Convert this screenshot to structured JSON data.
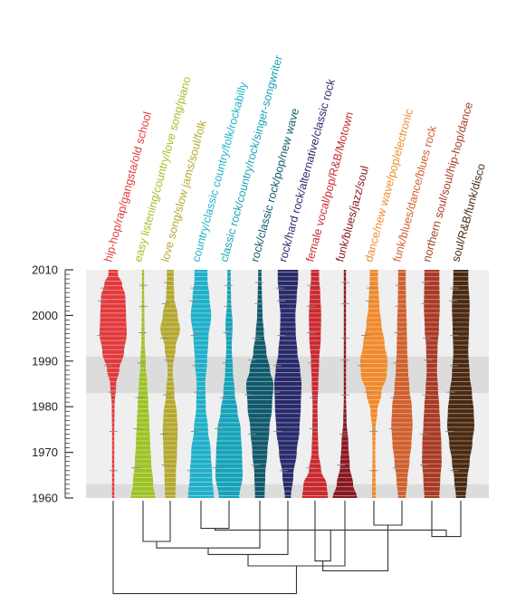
{
  "chart_data": {
    "type": "violin",
    "y_axis": {
      "ylim": [
        1960,
        2010
      ],
      "ticks": [
        "1960",
        "1970",
        "1980",
        "1990",
        "2000",
        "2010"
      ],
      "shaded_bands": [
        [
          1960,
          1963
        ],
        [
          1983,
          1991
        ]
      ]
    },
    "series": [
      {
        "name": "hip-hop/rap/gangsta/old school",
        "color": "#e23a3c",
        "density": [
          [
            1960,
            0.05
          ],
          [
            1970,
            0.06
          ],
          [
            1980,
            0.1
          ],
          [
            1985,
            0.22
          ],
          [
            1988,
            0.45
          ],
          [
            1992,
            0.8
          ],
          [
            1996,
            1.0
          ],
          [
            2000,
            0.95
          ],
          [
            2004,
            0.9
          ],
          [
            2007,
            0.65
          ],
          [
            2009,
            0.35
          ]
        ]
      },
      {
        "name": "easy listening/country/love song/piano",
        "color": "#9ec225",
        "density": [
          [
            1960,
            0.9
          ],
          [
            1963,
            0.75
          ],
          [
            1968,
            0.6
          ],
          [
            1972,
            0.52
          ],
          [
            1977,
            0.45
          ],
          [
            1981,
            0.38
          ],
          [
            1985,
            0.3
          ],
          [
            1989,
            0.2
          ],
          [
            1995,
            0.12
          ],
          [
            2002,
            0.09
          ],
          [
            2008,
            0.06
          ]
        ]
      },
      {
        "name": "love song/slow jams/soul/folk",
        "color": "#b5a830",
        "density": [
          [
            1960,
            0.38
          ],
          [
            1965,
            0.42
          ],
          [
            1970,
            0.5
          ],
          [
            1975,
            0.55
          ],
          [
            1978,
            0.5
          ],
          [
            1983,
            0.3
          ],
          [
            1988,
            0.18
          ],
          [
            1993,
            0.4
          ],
          [
            1997,
            0.72
          ],
          [
            2000,
            0.55
          ],
          [
            2004,
            0.3
          ],
          [
            2008,
            0.25
          ]
        ]
      },
      {
        "name": "country/classic country/folk/rockabilly",
        "color": "#1fb0c9",
        "density": [
          [
            1960,
            0.95
          ],
          [
            1965,
            0.82
          ],
          [
            1970,
            0.72
          ],
          [
            1975,
            0.52
          ],
          [
            1980,
            0.35
          ],
          [
            1985,
            0.32
          ],
          [
            1990,
            0.45
          ],
          [
            1995,
            0.55
          ],
          [
            2000,
            0.75
          ],
          [
            2004,
            0.62
          ],
          [
            2008,
            0.48
          ]
        ]
      },
      {
        "name": "classic rock/country/rock/singer-songwriter",
        "color": "#16a3b8",
        "density": [
          [
            1960,
            0.75
          ],
          [
            1965,
            1.0
          ],
          [
            1970,
            0.95
          ],
          [
            1975,
            0.85
          ],
          [
            1979,
            0.62
          ],
          [
            1983,
            0.42
          ],
          [
            1988,
            0.28
          ],
          [
            1993,
            0.2
          ],
          [
            1998,
            0.26
          ],
          [
            2003,
            0.15
          ],
          [
            2008,
            0.12
          ]
        ]
      },
      {
        "name": "rock/classic rock/pop/new wave",
        "color": "#10596b",
        "density": [
          [
            1960,
            0.35
          ],
          [
            1965,
            0.4
          ],
          [
            1970,
            0.55
          ],
          [
            1975,
            0.7
          ],
          [
            1980,
            0.9
          ],
          [
            1985,
            1.0
          ],
          [
            1988,
            0.75
          ],
          [
            1992,
            0.48
          ],
          [
            1996,
            0.3
          ],
          [
            2000,
            0.2
          ],
          [
            2005,
            0.15
          ],
          [
            2008,
            0.12
          ]
        ]
      },
      {
        "name": "rock/hard rock/alternative/classic rock",
        "color": "#292a6a",
        "density": [
          [
            1960,
            0.22
          ],
          [
            1965,
            0.4
          ],
          [
            1970,
            0.65
          ],
          [
            1975,
            0.85
          ],
          [
            1980,
            0.95
          ],
          [
            1985,
            1.0
          ],
          [
            1988,
            0.9
          ],
          [
            1992,
            0.7
          ],
          [
            1996,
            0.58
          ],
          [
            2000,
            0.55
          ],
          [
            2004,
            0.65
          ],
          [
            2008,
            0.75
          ]
        ]
      },
      {
        "name": "female vocal/pop/R&B/Motown",
        "color": "#c92a30",
        "density": [
          [
            1960,
            0.95
          ],
          [
            1963,
            0.85
          ],
          [
            1966,
            0.45
          ],
          [
            1970,
            0.25
          ],
          [
            1975,
            0.2
          ],
          [
            1980,
            0.18
          ],
          [
            1985,
            0.24
          ],
          [
            1990,
            0.3
          ],
          [
            1995,
            0.42
          ],
          [
            2000,
            0.45
          ],
          [
            2005,
            0.38
          ],
          [
            2008,
            0.3
          ]
        ]
      },
      {
        "name": "funk/blues/jazz/soul",
        "color": "#8a1822",
        "density": [
          [
            1960,
            0.9
          ],
          [
            1963,
            0.6
          ],
          [
            1967,
            0.35
          ],
          [
            1972,
            0.25
          ],
          [
            1977,
            0.12
          ],
          [
            1982,
            0.08
          ],
          [
            1987,
            0.05
          ],
          [
            1992,
            0.04
          ],
          [
            1997,
            0.04
          ],
          [
            2002,
            0.03
          ],
          [
            2008,
            0.03
          ]
        ]
      },
      {
        "name": "dance/new wave/pop/electronic",
        "color": "#f08a2c",
        "density": [
          [
            1960,
            0.14
          ],
          [
            1965,
            0.12
          ],
          [
            1970,
            0.1
          ],
          [
            1975,
            0.12
          ],
          [
            1979,
            0.25
          ],
          [
            1983,
            0.55
          ],
          [
            1987,
            0.95
          ],
          [
            1990,
            1.0
          ],
          [
            1994,
            0.78
          ],
          [
            1998,
            0.55
          ],
          [
            2002,
            0.4
          ],
          [
            2008,
            0.3
          ]
        ]
      },
      {
        "name": "funk/blues/dance/blues rock",
        "color": "#d0602d",
        "density": [
          [
            1960,
            0.28
          ],
          [
            1964,
            0.4
          ],
          [
            1968,
            0.55
          ],
          [
            1972,
            0.7
          ],
          [
            1976,
            0.78
          ],
          [
            1980,
            0.72
          ],
          [
            1984,
            0.55
          ],
          [
            1988,
            0.45
          ],
          [
            1993,
            0.38
          ],
          [
            1998,
            0.35
          ],
          [
            2003,
            0.3
          ],
          [
            2008,
            0.28
          ]
        ]
      },
      {
        "name": "northern soul/soul/hip-hop/dance",
        "color": "#a83a26",
        "density": [
          [
            1960,
            0.55
          ],
          [
            1964,
            0.62
          ],
          [
            1968,
            0.72
          ],
          [
            1972,
            0.7
          ],
          [
            1976,
            0.62
          ],
          [
            1980,
            0.55
          ],
          [
            1984,
            0.45
          ],
          [
            1988,
            0.38
          ],
          [
            1993,
            0.42
          ],
          [
            1997,
            0.52
          ],
          [
            2002,
            0.58
          ],
          [
            2008,
            0.55
          ]
        ]
      },
      {
        "name": "soul/R&B/funk/disco",
        "color": "#4a2a12",
        "density": [
          [
            1960,
            0.35
          ],
          [
            1964,
            0.48
          ],
          [
            1968,
            0.65
          ],
          [
            1972,
            0.85
          ],
          [
            1976,
            1.0
          ],
          [
            1979,
            0.95
          ],
          [
            1983,
            0.82
          ],
          [
            1987,
            0.65
          ],
          [
            1992,
            0.55
          ],
          [
            1997,
            0.6
          ],
          [
            2002,
            0.65
          ],
          [
            2008,
            0.55
          ]
        ]
      }
    ],
    "dendrogram": {
      "merges": [
        [
          1,
          2,
          0.25
        ],
        [
          3,
          4,
          0.17
        ],
        [
          9,
          10,
          0.15
        ],
        [
          11,
          12,
          0.22
        ],
        [
          13,
          5,
          0.29
        ],
        [
          16,
          14,
          0.18
        ],
        [
          17,
          6,
          0.33
        ],
        [
          18,
          7,
          0.37
        ],
        [
          19,
          8,
          0.4
        ],
        [
          20,
          15,
          0.43
        ],
        [
          21,
          0,
          0.57
        ]
      ]
    }
  }
}
